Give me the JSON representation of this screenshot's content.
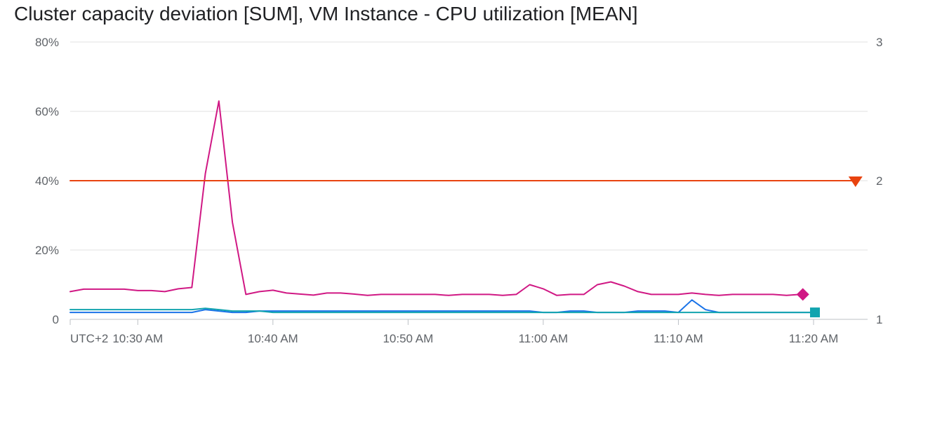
{
  "chart_data": {
    "type": "line",
    "title": "Cluster capacity deviation [SUM], VM Instance - CPU utilization [MEAN]",
    "timezone_label": "UTC+2",
    "x_tick_labels": [
      "10:30 AM",
      "10:40 AM",
      "10:50 AM",
      "11:00 AM",
      "11:10 AM",
      "11:20 AM"
    ],
    "x_tick_minutes": [
      30,
      40,
      50,
      60,
      70,
      80
    ],
    "xlim_minutes": [
      25,
      84
    ],
    "left_axis": {
      "ylim": [
        0,
        80
      ],
      "tick_values": [
        0,
        20,
        40,
        60,
        80
      ],
      "tick_labels": [
        "0",
        "20%",
        "40%",
        "60%",
        "80%"
      ]
    },
    "right_axis": {
      "ylim": [
        1,
        3
      ],
      "tick_values": [
        1,
        2,
        3
      ],
      "tick_labels": [
        "1",
        "2",
        "3"
      ]
    },
    "grid": true,
    "series": [
      {
        "axis": "left",
        "color": "#d01884",
        "marker": "diamond",
        "x": [
          25,
          26,
          27,
          28,
          29,
          30,
          31,
          32,
          33,
          34,
          35,
          36,
          37,
          38,
          39,
          40,
          41,
          42,
          43,
          44,
          45,
          46,
          47,
          48,
          49,
          50,
          51,
          52,
          53,
          54,
          55,
          56,
          57,
          58,
          59,
          60,
          61,
          62,
          63,
          64,
          65,
          66,
          67,
          68,
          69,
          70,
          71,
          72,
          73,
          74,
          75,
          76,
          77,
          78,
          79
        ],
        "y": [
          8,
          8.7,
          8.7,
          8.7,
          8.7,
          8.3,
          8.3,
          8,
          8.8,
          9.2,
          42,
          63,
          28,
          7.2,
          8,
          8.4,
          7.6,
          7.3,
          7,
          7.6,
          7.6,
          7.3,
          6.9,
          7.2,
          7.2,
          7.2,
          7.2,
          7.2,
          6.9,
          7.2,
          7.2,
          7.2,
          6.9,
          7.2,
          10,
          8.8,
          6.9,
          7.2,
          7.2,
          10,
          10.8,
          9.6,
          8,
          7.2,
          7.2,
          7.2,
          7.6,
          7.2,
          6.9,
          7.2,
          7.2,
          7.2,
          7.2,
          6.9,
          7.2
        ]
      },
      {
        "axis": "left",
        "color": "#1a73e8",
        "marker": "none",
        "x": [
          25,
          26,
          27,
          28,
          29,
          30,
          31,
          32,
          33,
          34,
          35,
          36,
          37,
          38,
          39,
          40,
          41,
          42,
          43,
          44,
          45,
          46,
          47,
          48,
          49,
          50,
          51,
          52,
          53,
          54,
          55,
          56,
          57,
          58,
          59,
          60,
          61,
          62,
          63,
          64,
          65,
          66,
          67,
          68,
          69,
          70,
          71,
          72,
          73,
          74,
          75,
          76,
          77,
          78,
          79,
          80
        ],
        "y": [
          2,
          2,
          2,
          2,
          2,
          2,
          2,
          2,
          2,
          2,
          2.8,
          2.4,
          2,
          2,
          2.4,
          2.4,
          2.4,
          2.4,
          2.4,
          2.4,
          2.4,
          2.4,
          2.4,
          2.4,
          2.4,
          2.4,
          2.4,
          2.4,
          2.4,
          2.4,
          2.4,
          2.4,
          2.4,
          2.4,
          2.4,
          2,
          2,
          2.4,
          2.4,
          2,
          2,
          2,
          2.4,
          2.4,
          2.4,
          2,
          5.6,
          2.8,
          2,
          2,
          2,
          2,
          2,
          2,
          2,
          2
        ]
      },
      {
        "axis": "left",
        "color": "#12a4af",
        "marker": "square",
        "x": [
          25,
          26,
          27,
          28,
          29,
          30,
          31,
          32,
          33,
          34,
          35,
          36,
          37,
          38,
          39,
          40,
          41,
          42,
          43,
          44,
          45,
          46,
          47,
          48,
          49,
          50,
          51,
          52,
          53,
          54,
          55,
          56,
          57,
          58,
          59,
          60,
          61,
          62,
          63,
          64,
          65,
          66,
          67,
          68,
          69,
          70,
          71,
          72,
          73,
          74,
          75,
          76,
          77,
          78,
          79,
          80
        ],
        "y": [
          2.8,
          2.8,
          2.8,
          2.8,
          2.8,
          2.8,
          2.8,
          2.8,
          2.8,
          2.8,
          3.2,
          2.8,
          2.4,
          2.4,
          2.4,
          2,
          2,
          2,
          2,
          2,
          2,
          2,
          2,
          2,
          2,
          2,
          2,
          2,
          2,
          2,
          2,
          2,
          2,
          2,
          2,
          2,
          2,
          2,
          2,
          2,
          2,
          2,
          2,
          2,
          2,
          2,
          2,
          2,
          2,
          2,
          2,
          2,
          2,
          2,
          2,
          2
        ]
      },
      {
        "axis": "right",
        "color": "#e8430f",
        "marker": "triangle-down",
        "x": [
          25,
          83
        ],
        "y": [
          2,
          2
        ]
      }
    ]
  }
}
